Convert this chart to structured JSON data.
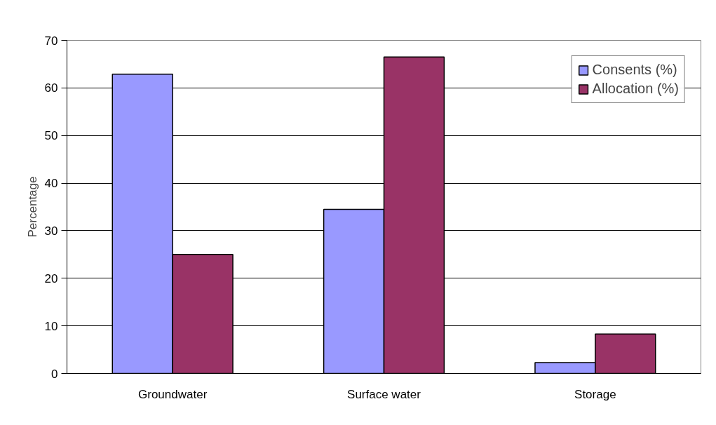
{
  "chart_data": {
    "type": "bar",
    "ylabel": "Percentage",
    "categories": [
      "Groundwater",
      "Surface water",
      "Storage"
    ],
    "series": [
      {
        "name": "Consents (%)",
        "color": "#9999ff",
        "values": [
          62.9,
          34.5,
          2.3
        ]
      },
      {
        "name": "Allocation (%)",
        "color": "#993366",
        "values": [
          25.0,
          66.5,
          8.3
        ]
      }
    ],
    "ylim": [
      0,
      70
    ],
    "yticks": [
      0,
      10,
      20,
      30,
      40,
      50,
      60,
      70
    ],
    "grid": "y",
    "legend": "top right"
  }
}
